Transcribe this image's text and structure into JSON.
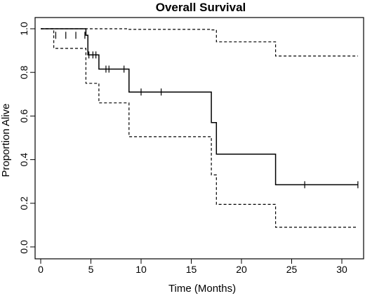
{
  "chart_data": {
    "type": "line",
    "title": "Overall Survival",
    "xlabel": "Time (Months)",
    "ylabel": "Proportion Alive",
    "xlim": [
      0,
      32
    ],
    "ylim": [
      0,
      1
    ],
    "x_ticks": [
      0,
      5,
      10,
      15,
      20,
      25,
      30
    ],
    "y_ticks": [
      0.0,
      0.2,
      0.4,
      0.6,
      0.8,
      1.0
    ],
    "x_tick_labels": [
      "0",
      "5",
      "10",
      "15",
      "20",
      "25",
      "30"
    ],
    "y_tick_labels": [
      "0.0",
      "0.2",
      "0.4",
      "0.6",
      "0.8",
      "1.0"
    ],
    "grid": false,
    "series": [
      {
        "style": "solid",
        "color": "#000000",
        "steps": [
          [
            0,
            1.0
          ],
          [
            4.5,
            1.0
          ],
          [
            4.5,
            0.97
          ],
          [
            4.7,
            0.97
          ],
          [
            4.7,
            0.88
          ],
          [
            5.8,
            0.88
          ],
          [
            5.8,
            0.815
          ],
          [
            8.8,
            0.815
          ],
          [
            8.8,
            0.71
          ],
          [
            17.0,
            0.71
          ],
          [
            17.0,
            0.57
          ],
          [
            17.5,
            0.57
          ],
          [
            17.5,
            0.425
          ],
          [
            23.4,
            0.425
          ],
          [
            23.4,
            0.285
          ],
          [
            31.6,
            0.285
          ]
        ],
        "censored": [
          [
            1.5,
            0.97
          ],
          [
            2.5,
            0.97
          ],
          [
            3.5,
            0.97
          ],
          [
            4.4,
            0.97
          ],
          [
            4.8,
            0.88
          ],
          [
            5.2,
            0.88
          ],
          [
            5.5,
            0.88
          ],
          [
            6.5,
            0.815
          ],
          [
            6.8,
            0.815
          ],
          [
            8.3,
            0.815
          ],
          [
            10.0,
            0.71
          ],
          [
            12.0,
            0.71
          ],
          [
            26.3,
            0.285
          ],
          [
            31.6,
            0.285
          ]
        ]
      },
      {
        "style": "dashed",
        "color": "#000000",
        "steps": [
          [
            0,
            1.0
          ],
          [
            8.8,
            1.0
          ],
          [
            8.8,
            0.997
          ],
          [
            17.0,
            0.997
          ],
          [
            17.0,
            0.995
          ],
          [
            17.5,
            0.995
          ],
          [
            17.5,
            0.94
          ],
          [
            23.4,
            0.94
          ],
          [
            23.4,
            0.875
          ],
          [
            31.6,
            0.875
          ]
        ],
        "censored": []
      },
      {
        "style": "dashed",
        "color": "#000000",
        "steps": [
          [
            0,
            1.0
          ],
          [
            1.3,
            1.0
          ],
          [
            1.3,
            0.91
          ],
          [
            4.5,
            0.91
          ],
          [
            4.5,
            0.75
          ],
          [
            5.8,
            0.75
          ],
          [
            5.8,
            0.66
          ],
          [
            8.8,
            0.66
          ],
          [
            8.8,
            0.505
          ],
          [
            17.0,
            0.505
          ],
          [
            17.0,
            0.33
          ],
          [
            17.5,
            0.33
          ],
          [
            17.5,
            0.195
          ],
          [
            23.4,
            0.195
          ],
          [
            23.4,
            0.09
          ],
          [
            31.6,
            0.09
          ]
        ],
        "censored": []
      }
    ]
  }
}
